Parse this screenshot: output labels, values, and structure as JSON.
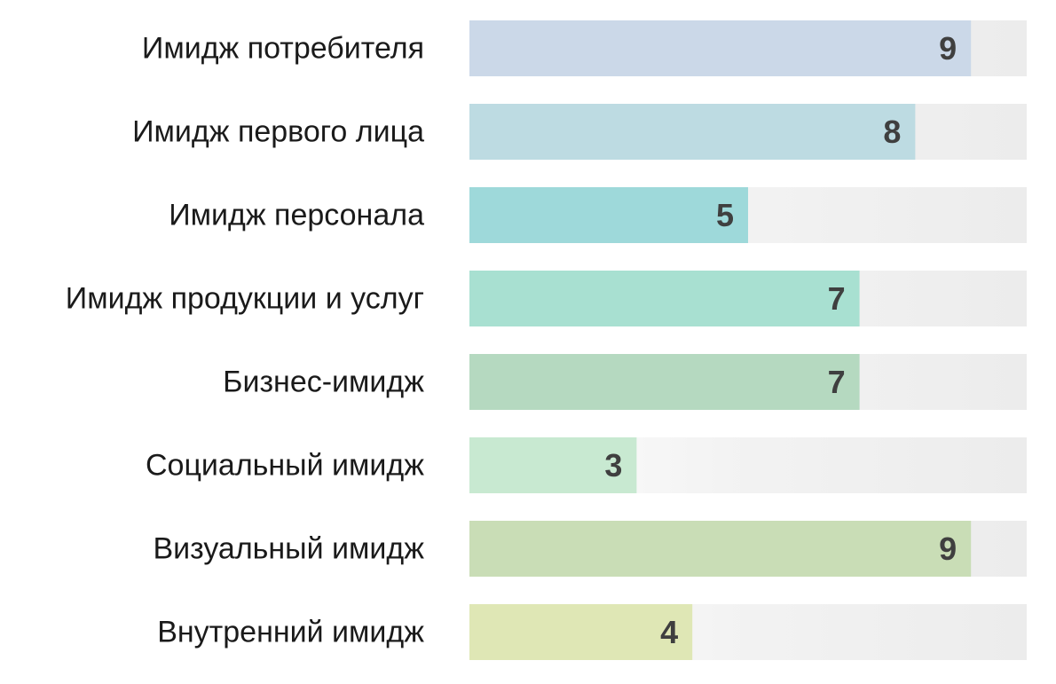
{
  "chart_data": {
    "type": "bar",
    "orientation": "horizontal",
    "categories": [
      "Имидж потребителя",
      "Имидж первого лица",
      "Имидж персонала",
      "Имидж продукции и услуг",
      "Бизнес-имидж",
      "Социальный имидж",
      "Визуальный имидж",
      "Внутренний имидж"
    ],
    "values": [
      9,
      8,
      5,
      7,
      7,
      3,
      9,
      4
    ],
    "xlim": [
      0,
      10
    ],
    "title": "",
    "xlabel": "",
    "ylabel": "",
    "grid": false,
    "legend": "none",
    "colors": [
      "#cbd8e8",
      "#bddbe2",
      "#9ed9da",
      "#a8e0d1",
      "#b5d9c0",
      "#c8e9d1",
      "#c9ddb6",
      "#dfe7b5"
    ],
    "track_color": "#ececec"
  }
}
